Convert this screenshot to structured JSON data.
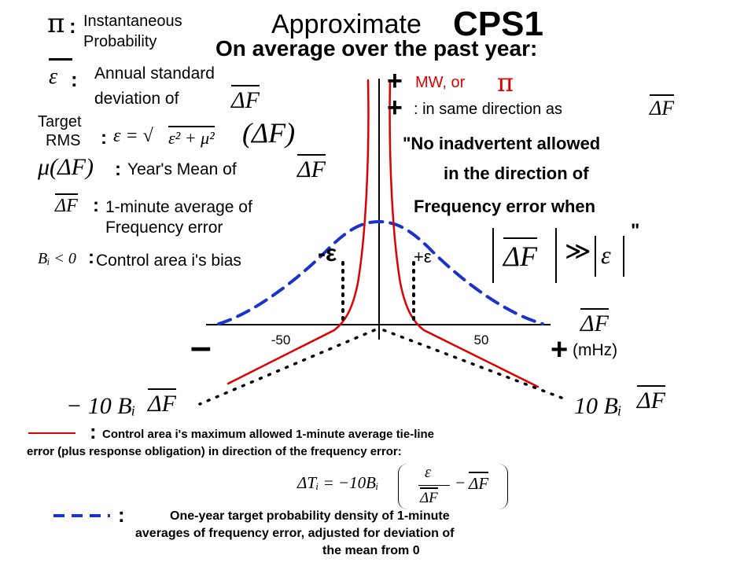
{
  "title": {
    "prefix": "Approximate",
    "main": "CPS1"
  },
  "subtitle": "On average over the past year:",
  "legend": {
    "pi_symbol": "π",
    "pi_colon": ":",
    "pi_line1": "Instantaneous",
    "pi_line2": "Probability",
    "eps_symbol": "ε",
    "eps_colon": ":",
    "eps_line1": "Annual standard",
    "eps_line2": "deviation of",
    "dF": "ΔF",
    "target_line1": "Target",
    "target_line2": "RMS",
    "target_colon": ":",
    "rms_formula_lhs": "ε = √",
    "rms_formula_body": "ε² + μ²",
    "rms_formula_mu": "(ΔF)",
    "mu_symbol": "μ(ΔF)",
    "mu_colon": ":",
    "mu_text": "Year's Mean of",
    "avg_colon": ":",
    "avg_line1": "1-minute average of",
    "avg_line2": "Frequency error",
    "bias_symbol": "Bᵢ < 0",
    "bias_colon": ":",
    "bias_text": "Control area i's bias"
  },
  "right_notes": {
    "plus1": "+",
    "mw_text": "MW, or",
    "pi": "π",
    "plus2": "+",
    "same_dir": ": in same direction as",
    "dF": "ΔF",
    "quote_line1": "\"No inadvertent allowed",
    "quote_line2": "in the direction of",
    "quote_line3": "Frequency error when",
    "cond_dF": "ΔF",
    "cond_rel": "≫",
    "cond_eps": "ε",
    "quote_close": "\""
  },
  "axis": {
    "neg_eps": "-ε",
    "pos_eps": "+ε",
    "minus": "–",
    "plus": "+",
    "xunit": "(mHz)",
    "xsym": "ΔF",
    "ylabel_left": "− 10 Bᵢ",
    "ylabel_left_dF": "ΔF",
    "ylabel_right": "10 Bᵢ",
    "ylabel_right_dF": "ΔF"
  },
  "chart_data": {
    "type": "line",
    "xlabel": "ΔF (mHz)",
    "xticks": [
      -50,
      50
    ],
    "xlim": [
      -110,
      110
    ],
    "series": [
      {
        "color": "#dd0000",
        "style": "solid"
      },
      {
        "color": "#1a33cc",
        "style": "dashed"
      },
      {
        "color": "#000000",
        "style": "dotted"
      }
    ]
  },
  "footer": {
    "red_colon": ":",
    "red_line1": "Control area i's maximum allowed 1-minute average tie-line",
    "red_line2": "error (plus response obligation) in direction of the frequency error:",
    "formula_lhs": "ΔTᵢ = −10Bᵢ",
    "formula_frac_num": "ε",
    "formula_frac_den": "ΔF",
    "formula_minus": "−",
    "formula_last": "ΔF",
    "blue_colon": ":",
    "blue_line1": "One-year target probability density of 1-minute",
    "blue_line2": "averages of frequency error, adjusted for deviation of",
    "blue_line3": "the mean from 0"
  },
  "colors": {
    "red": "#dd0000",
    "blue": "#1a33cc",
    "black": "#000000"
  }
}
